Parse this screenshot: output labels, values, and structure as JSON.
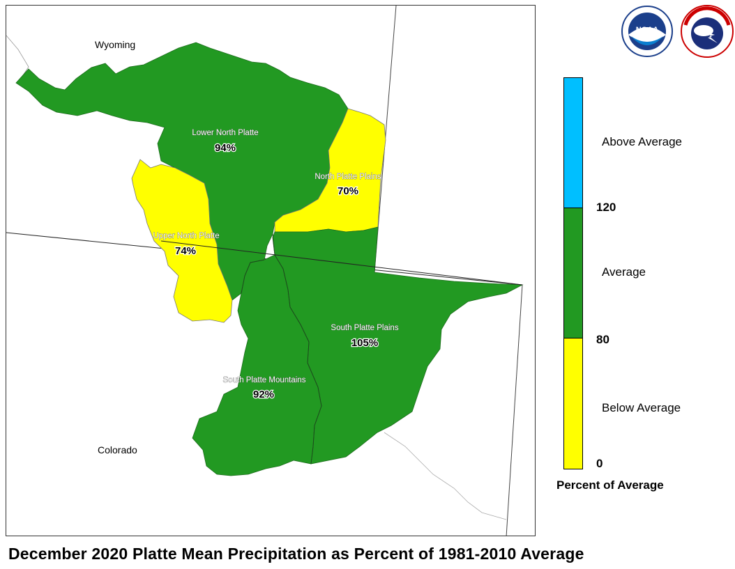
{
  "map": {
    "title": "December 2020 Platte Mean Precipitation as Percent of 1981-2010 Average",
    "state_labels": {
      "wyoming": "Wyoming",
      "colorado": "Colorado"
    },
    "basins": [
      {
        "name": "Lower North Platte",
        "percent": "94%",
        "category": "Average"
      },
      {
        "name": "North Platte Plains",
        "percent": "70%",
        "category": "Below Average"
      },
      {
        "name": "Upper North Platte",
        "percent": "74%",
        "category": "Below Average"
      },
      {
        "name": "South Platte Plains",
        "percent": "105%",
        "category": "Average"
      },
      {
        "name": "South Platte Mountains",
        "percent": "92%",
        "category": "Average"
      }
    ]
  },
  "legend": {
    "title": "Percent of Average",
    "categories": {
      "above": "Above Average",
      "average": "Average",
      "below": "Below Average"
    },
    "ticks": {
      "t120": "120",
      "t80": "80",
      "t0": "0"
    },
    "colors": {
      "above": "#00bfff",
      "average": "#229922",
      "below": "#ffff00"
    }
  },
  "logos": {
    "noaa": "NOAA",
    "nws": "NATIONAL WEATHER SERVICE"
  }
}
